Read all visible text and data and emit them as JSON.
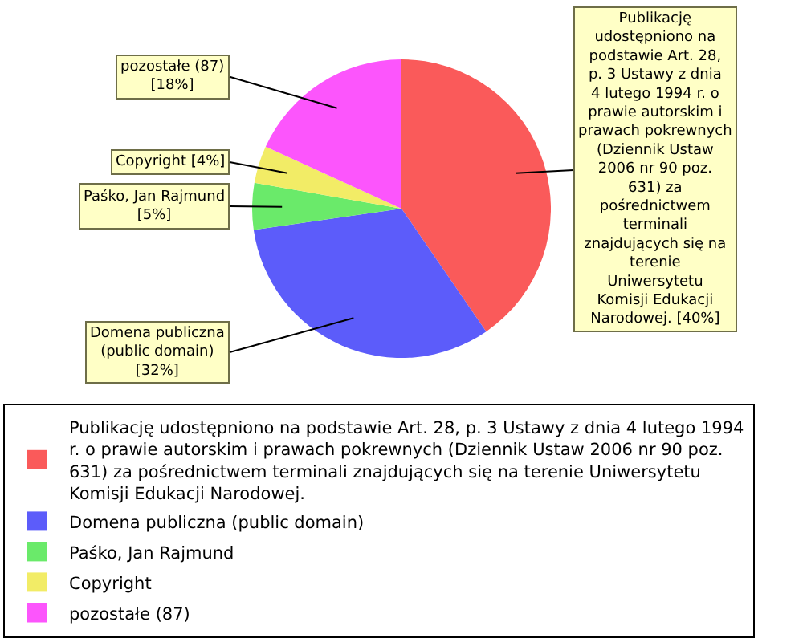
{
  "chart_data": {
    "type": "pie",
    "categories": [
      "Publikację udostępniono na podstawie Art. 28, p. 3 Ustawy z dnia 4 lutego 1994 r. o prawie autorskim i prawach pokrewnych (Dziennik Ustaw 2006 nr 90 poz. 631) za pośrednictwem terminali znajdujących się na terenie Uniwersytetu Komisji Edukacji Narodowej.",
      "Domena publiczna (public domain)",
      "Paśko, Jan Rajmund",
      "Copyright",
      "pozostałe (87)"
    ],
    "values": [
      40,
      32,
      5,
      4,
      18
    ],
    "value_labels": [
      "[40%]",
      "[32%]",
      "[5%]",
      "[4%]",
      "[18%]"
    ],
    "colors": [
      "#fa5a5a",
      "#5c5cfa",
      "#6aea6a",
      "#f2ec66",
      "#fc55fc"
    ],
    "legend": "bottom"
  }
}
